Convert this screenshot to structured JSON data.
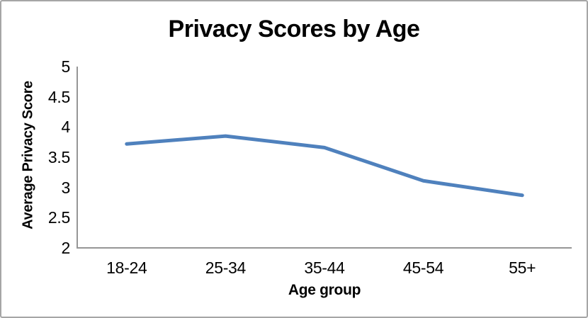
{
  "chart_data": {
    "type": "line",
    "title": "Privacy Scores by Age",
    "xlabel": "Age group",
    "ylabel": "Average Privacy Score",
    "categories": [
      "18-24",
      "25-34",
      "35-44",
      "45-54",
      "55+"
    ],
    "series": [
      {
        "name": "Average Privacy Score",
        "values": [
          3.72,
          3.85,
          3.66,
          3.11,
          2.87
        ]
      }
    ],
    "ylim": [
      2,
      5
    ],
    "ytick_labels": [
      "2",
      "2.5",
      "3",
      "3.5",
      "4",
      "4.5",
      "5"
    ],
    "grid": false,
    "legend": "none",
    "markers": false,
    "colors": {
      "line": "#4F81BD",
      "axis": "#969696",
      "border": "#A6A6A6",
      "text": "#000000",
      "background": "#FFFFFF"
    }
  }
}
